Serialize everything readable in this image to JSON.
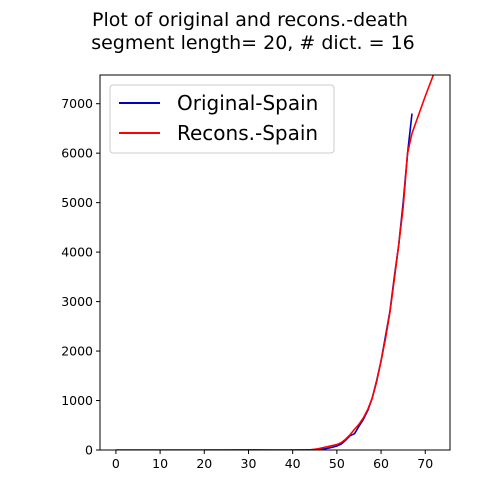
{
  "chart_data": {
    "type": "line",
    "title": [
      "Plot of original and recons.-death",
      "segment length= 20, # dict. = 16"
    ],
    "xlabel": "",
    "ylabel": "",
    "xlim": [
      -3.6,
      75.6
    ],
    "ylim": [
      0,
      7580
    ],
    "xticks": [
      0,
      10,
      20,
      30,
      40,
      50,
      60,
      70
    ],
    "yticks": [
      0,
      1000,
      2000,
      3000,
      4000,
      5000,
      6000,
      7000
    ],
    "legend_position": "upper-left",
    "grid": false,
    "series": [
      {
        "name": "Original-Spain",
        "color": "#0000bf",
        "x": [
          0,
          5,
          10,
          15,
          20,
          25,
          30,
          35,
          40,
          42,
          44,
          45,
          46,
          47,
          48,
          49,
          50,
          51,
          52,
          53,
          54,
          55,
          56,
          57,
          58,
          59,
          60,
          61,
          62,
          63,
          64,
          65,
          66,
          67
        ],
        "y": [
          0,
          0,
          0,
          0,
          0,
          0,
          0,
          0,
          0,
          2,
          5,
          8,
          12,
          20,
          35,
          55,
          80,
          120,
          200,
          290,
          330,
          480,
          620,
          800,
          1050,
          1400,
          1800,
          2300,
          2800,
          3500,
          4150,
          5000,
          6000,
          6800
        ]
      },
      {
        "name": "Recons.-Spain",
        "color": "#ff0000",
        "x": [
          20,
          25,
          30,
          35,
          40,
          44,
          45,
          46,
          47,
          48,
          49,
          50,
          51,
          52,
          53,
          54,
          55,
          56,
          57,
          58,
          59,
          60,
          61,
          62,
          63,
          64,
          65,
          66,
          67,
          68,
          70,
          72
        ],
        "y": [
          0,
          0,
          5,
          0,
          0,
          5,
          15,
          30,
          50,
          70,
          90,
          110,
          150,
          220,
          310,
          420,
          520,
          650,
          820,
          1050,
          1380,
          1800,
          2250,
          2780,
          3450,
          4150,
          4900,
          6000,
          6400,
          6650,
          7150,
          7620
        ]
      }
    ]
  }
}
